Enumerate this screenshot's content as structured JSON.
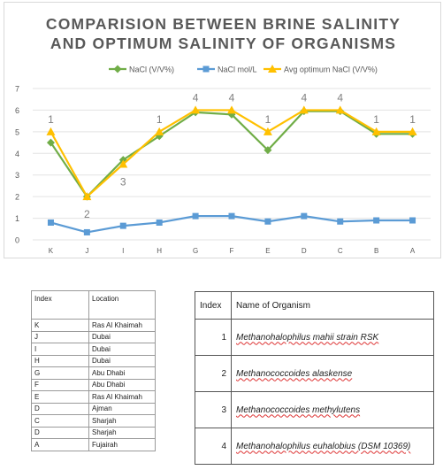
{
  "chart_data": {
    "type": "line",
    "title_line1": "COMPARISION BETWEEN BRINE SALINITY",
    "title_line2": "AND OPTIMUM SALINITY OF ORGANISMS",
    "categories": [
      "K",
      "J",
      "I",
      "H",
      "G",
      "F",
      "E",
      "D",
      "C",
      "B",
      "A"
    ],
    "ylim": [
      0,
      7
    ],
    "yticks": [
      "0",
      "1",
      "2",
      "3",
      "4",
      "5",
      "6",
      "7"
    ],
    "legend_position": "top",
    "series": [
      {
        "name": "NaCl (V/V%)",
        "color": "#70ad47",
        "marker": "diamond",
        "values": [
          4.5,
          2.0,
          3.7,
          4.8,
          5.9,
          5.8,
          4.15,
          5.95,
          5.95,
          4.9,
          4.9
        ]
      },
      {
        "name": "NaCl mol/L",
        "color": "#5b9bd5",
        "marker": "square",
        "values": [
          0.8,
          0.35,
          0.65,
          0.8,
          1.1,
          1.1,
          0.85,
          1.1,
          0.85,
          0.9,
          0.9
        ]
      },
      {
        "name": "Avg optimum NaCl (V/V%)",
        "color": "#ffc000",
        "marker": "triangle",
        "values": [
          5.0,
          2.0,
          3.5,
          5.0,
          6.0,
          6.0,
          5.0,
          6.0,
          6.0,
          5.0,
          5.0
        ]
      }
    ],
    "annotations": [
      {
        "category": "K",
        "text": "1",
        "place": "above"
      },
      {
        "category": "J",
        "text": "2",
        "place": "below"
      },
      {
        "category": "I",
        "text": "3",
        "place": "below"
      },
      {
        "category": "H",
        "text": "1",
        "place": "above"
      },
      {
        "category": "G",
        "text": "4",
        "place": "above"
      },
      {
        "category": "F",
        "text": "4",
        "place": "above"
      },
      {
        "category": "E",
        "text": "1",
        "place": "above"
      },
      {
        "category": "D",
        "text": "4",
        "place": "above"
      },
      {
        "category": "C",
        "text": "4",
        "place": "above"
      },
      {
        "category": "B",
        "text": "1",
        "place": "above"
      },
      {
        "category": "A",
        "text": "1",
        "place": "above"
      }
    ]
  },
  "location_table": {
    "headers": [
      "Index",
      "Location"
    ],
    "rows": [
      [
        "K",
        "Ras Al Khaimah"
      ],
      [
        "J",
        "Dubai"
      ],
      [
        "I",
        "Dubai"
      ],
      [
        "H",
        "Dubai"
      ],
      [
        "G",
        "Abu Dhabi"
      ],
      [
        "F",
        "Abu Dhabi"
      ],
      [
        "E",
        "Ras Al Khaimah"
      ],
      [
        "D",
        "Ajman"
      ],
      [
        "C",
        "Sharjah"
      ],
      [
        "D",
        "Sharjah"
      ],
      [
        "A",
        "Fujairah"
      ]
    ]
  },
  "organism_table": {
    "headers": [
      "Index",
      "Name of Organism"
    ],
    "rows": [
      {
        "index": "1",
        "name": "Methanohalophilus mahii strain RSK"
      },
      {
        "index": "2",
        "name": "Methanococcoides alaskense"
      },
      {
        "index": "3",
        "name": "Methanococcoides methylutens"
      },
      {
        "index": "4",
        "name": "Methanohalophilus euhalobius (DSM 10369)"
      }
    ]
  }
}
